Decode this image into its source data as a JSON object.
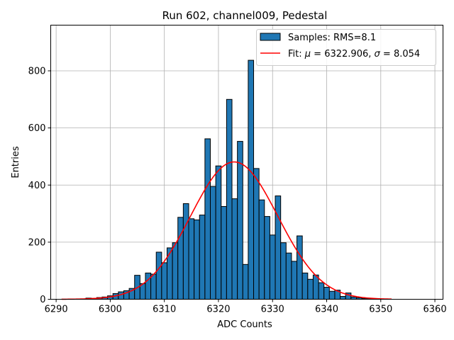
{
  "chart_data": {
    "type": "bar",
    "title": "Run 602, channel009, Pedestal",
    "xlabel": "ADC Counts",
    "ylabel": "Entries",
    "xlim": [
      6289,
      6361.5
    ],
    "ylim": [
      0,
      960
    ],
    "x_ticks": [
      6290,
      6300,
      6310,
      6320,
      6330,
      6340,
      6350,
      6360
    ],
    "y_ticks": [
      0,
      200,
      400,
      600,
      800
    ],
    "grid": true,
    "legend_position": "top-right",
    "bin_width": 1,
    "bins": [
      {
        "x": 6296,
        "y": 4
      },
      {
        "x": 6297,
        "y": 3
      },
      {
        "x": 6298,
        "y": 6
      },
      {
        "x": 6299,
        "y": 8
      },
      {
        "x": 6300,
        "y": 12
      },
      {
        "x": 6301,
        "y": 20
      },
      {
        "x": 6302,
        "y": 26
      },
      {
        "x": 6303,
        "y": 30
      },
      {
        "x": 6304,
        "y": 38
      },
      {
        "x": 6305,
        "y": 84
      },
      {
        "x": 6306,
        "y": 55
      },
      {
        "x": 6307,
        "y": 92
      },
      {
        "x": 6308,
        "y": 88
      },
      {
        "x": 6309,
        "y": 165
      },
      {
        "x": 6310,
        "y": 128
      },
      {
        "x": 6311,
        "y": 180
      },
      {
        "x": 6312,
        "y": 198
      },
      {
        "x": 6313,
        "y": 287
      },
      {
        "x": 6314,
        "y": 335
      },
      {
        "x": 6315,
        "y": 282
      },
      {
        "x": 6316,
        "y": 278
      },
      {
        "x": 6317,
        "y": 295
      },
      {
        "x": 6318,
        "y": 562
      },
      {
        "x": 6319,
        "y": 395
      },
      {
        "x": 6320,
        "y": 467
      },
      {
        "x": 6321,
        "y": 325
      },
      {
        "x": 6322,
        "y": 700
      },
      {
        "x": 6323,
        "y": 352
      },
      {
        "x": 6324,
        "y": 553
      },
      {
        "x": 6325,
        "y": 122
      },
      {
        "x": 6326,
        "y": 837
      },
      {
        "x": 6327,
        "y": 458
      },
      {
        "x": 6328,
        "y": 348
      },
      {
        "x": 6329,
        "y": 290
      },
      {
        "x": 6330,
        "y": 225
      },
      {
        "x": 6331,
        "y": 362
      },
      {
        "x": 6332,
        "y": 198
      },
      {
        "x": 6333,
        "y": 162
      },
      {
        "x": 6334,
        "y": 133
      },
      {
        "x": 6335,
        "y": 222
      },
      {
        "x": 6336,
        "y": 92
      },
      {
        "x": 6337,
        "y": 70
      },
      {
        "x": 6338,
        "y": 85
      },
      {
        "x": 6339,
        "y": 58
      },
      {
        "x": 6340,
        "y": 42
      },
      {
        "x": 6341,
        "y": 28
      },
      {
        "x": 6342,
        "y": 32
      },
      {
        "x": 6343,
        "y": 10
      },
      {
        "x": 6344,
        "y": 22
      },
      {
        "x": 6345,
        "y": 8
      },
      {
        "x": 6346,
        "y": 5
      },
      {
        "x": 6347,
        "y": 3
      },
      {
        "x": 6348,
        "y": 2
      }
    ],
    "fit": {
      "mu": 6322.906,
      "sigma": 8.054,
      "amplitude": 481,
      "x_range": [
        6291,
        6352
      ]
    },
    "series": [
      {
        "name": "Samples: RMS=8.1",
        "kind": "histogram",
        "color": "#1f77b4"
      },
      {
        "name_prefix": "Fit: ",
        "mu_text": "6322.906",
        "sigma_text": "8.054",
        "kind": "gaussian",
        "color": "#ff0000"
      }
    ]
  }
}
